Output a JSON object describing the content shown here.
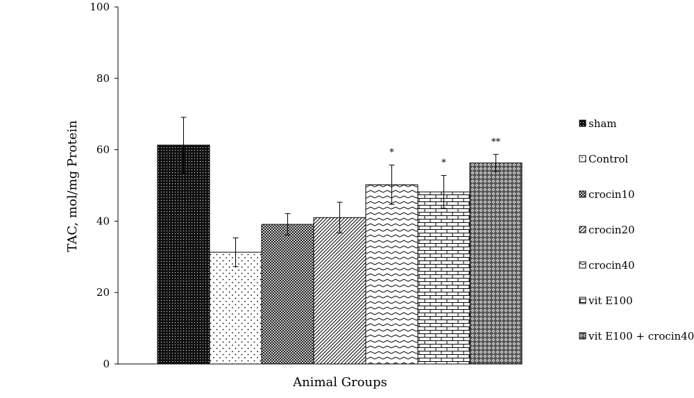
{
  "chart_data": {
    "type": "bar",
    "title": "",
    "xlabel": "Animal Groups",
    "ylabel": "TAC, mol/mg Protein",
    "ylim": [
      0,
      100
    ],
    "yticks": [
      "0",
      "20",
      "40",
      "60",
      "80",
      "100"
    ],
    "grid": false,
    "legend_position": "right",
    "categories": [
      "sham",
      "Control",
      "crocin10",
      "crocin20",
      "crocin40",
      "vit E100",
      "vit E100 + crocin40"
    ],
    "values": [
      61.3,
      31.3,
      39.1,
      41.0,
      50.2,
      48.2,
      56.3
    ],
    "errors": [
      7.8,
      4.0,
      3.0,
      4.3,
      5.5,
      4.6,
      2.4
    ],
    "significance": [
      "",
      "",
      "",
      "",
      "*",
      "*",
      "**"
    ],
    "patterns": [
      "dense-dots-dark",
      "sparse-dots",
      "crosshatch-fine",
      "diagonal-lines",
      "wavy-lines",
      "brick",
      "diamond-grid"
    ]
  }
}
